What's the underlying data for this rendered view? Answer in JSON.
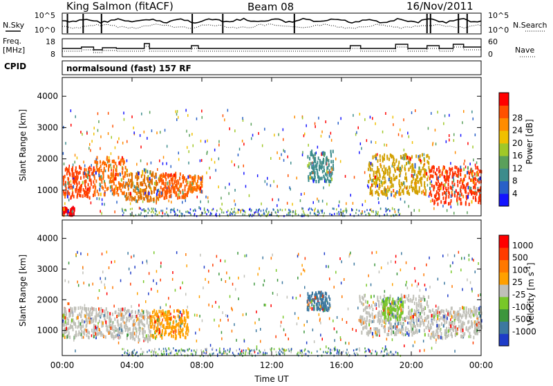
{
  "header": {
    "station": "King Salmon (fitACF)",
    "beam": "Beam 08",
    "date": "16/Nov/2011"
  },
  "noise_panel": {
    "left_label": "N.Sky",
    "right_label": "N.Search",
    "left_top_tick": "10^5",
    "left_bottom_tick": "10^0",
    "right_top_tick": "10^5",
    "right_bottom_tick": "10^0"
  },
  "freq_panel": {
    "left_label_line1": "Freq.",
    "left_label_line2": "[MHz]",
    "left_top_tick": "18",
    "left_bottom_tick": "8",
    "right_label": "Nave",
    "right_top_tick": "60",
    "right_bottom_tick": "0"
  },
  "cpid": {
    "label": "CPID",
    "text": "normalsound (fast) 157 RF"
  },
  "chart_data": [
    {
      "type": "heatmap",
      "name": "power",
      "ylabel": "Slant Range [km]",
      "xlabel": "",
      "x_tick_labels": [
        "00:00",
        "04:00",
        "08:00",
        "12:00",
        "16:00",
        "20:00",
        "00:00"
      ],
      "x_hours": [
        0,
        4,
        8,
        12,
        16,
        20,
        24
      ],
      "y_ticks": [
        1000,
        2000,
        3000,
        4000
      ],
      "ylim": [
        180,
        4600
      ],
      "colorbar": {
        "label": "Power [dB]",
        "ticks": [
          "4",
          "8",
          "12",
          "16",
          "20",
          "24",
          "28"
        ],
        "colors": [
          "#1414ff",
          "#2860c8",
          "#3c8c8c",
          "#5aa05a",
          "#a0c828",
          "#f0c000",
          "#ff8c00",
          "#ff5000",
          "#ff0000"
        ]
      },
      "regions": [
        {
          "t0": 0.0,
          "t1": 1.8,
          "r0": 800,
          "r1": 1800,
          "color": "#ff4000"
        },
        {
          "t0": 0.0,
          "t1": 0.7,
          "r0": 250,
          "r1": 500,
          "color": "#ff0000"
        },
        {
          "t0": 1.8,
          "t1": 3.6,
          "r0": 900,
          "r1": 2100,
          "color": "#ff6a00"
        },
        {
          "t0": 3.6,
          "t1": 5.5,
          "r0": 700,
          "r1": 1700,
          "color": "#e07000"
        },
        {
          "t0": 5.5,
          "t1": 7.2,
          "r0": 800,
          "r1": 1600,
          "color": "#ff5a00"
        },
        {
          "t0": 7.2,
          "t1": 8.0,
          "r0": 1000,
          "r1": 1500,
          "color": "#ff7000"
        },
        {
          "t0": 14.0,
          "t1": 15.5,
          "r0": 1300,
          "r1": 2300,
          "color": "#3c8c8c"
        },
        {
          "t0": 17.5,
          "t1": 21.0,
          "r0": 900,
          "r1": 2200,
          "color": "#d2a000"
        },
        {
          "t0": 21.0,
          "t1": 24.0,
          "r0": 600,
          "r1": 1800,
          "color": "#ff3000"
        }
      ]
    },
    {
      "type": "heatmap",
      "name": "velocity",
      "ylabel": "Slant Range [km]",
      "xlabel": "Time UT",
      "x_tick_labels": [
        "00:00",
        "04:00",
        "08:00",
        "12:00",
        "16:00",
        "20:00",
        "00:00"
      ],
      "x_hours": [
        0,
        4,
        8,
        12,
        16,
        20,
        24
      ],
      "y_ticks": [
        1000,
        2000,
        3000,
        4000
      ],
      "ylim": [
        180,
        4600
      ],
      "colorbar": {
        "label": "Velocity [m s^-1]",
        "ticks": [
          "1000",
          "500",
          "100",
          "25",
          "-25",
          "-100",
          "-500",
          "-1000"
        ],
        "colors": [
          "#1e3cc8",
          "#3c78a0",
          "#3c963c",
          "#78c828",
          "#c0c0b8",
          "#ffa000",
          "#ff7800",
          "#ff3c00",
          "#ff0000"
        ]
      },
      "regions": [
        {
          "t0": 0.0,
          "t1": 3.6,
          "r0": 800,
          "r1": 1800,
          "color": "#c0c0b8"
        },
        {
          "t0": 3.6,
          "t1": 5.0,
          "r0": 700,
          "r1": 1700,
          "color": "#c0c0b8"
        },
        {
          "t0": 5.0,
          "t1": 7.2,
          "r0": 800,
          "r1": 1700,
          "color": "#ffa000"
        },
        {
          "t0": 14.0,
          "t1": 15.3,
          "r0": 1700,
          "r1": 2300,
          "color": "#3c78a0"
        },
        {
          "t0": 17.0,
          "t1": 21.0,
          "r0": 900,
          "r1": 2200,
          "color": "#c0c0b8"
        },
        {
          "t0": 18.3,
          "t1": 19.5,
          "r0": 1400,
          "r1": 2100,
          "color": "#78c828"
        },
        {
          "t0": 21.0,
          "t1": 24.0,
          "r0": 800,
          "r1": 1800,
          "color": "#c0c0b8"
        }
      ]
    }
  ]
}
